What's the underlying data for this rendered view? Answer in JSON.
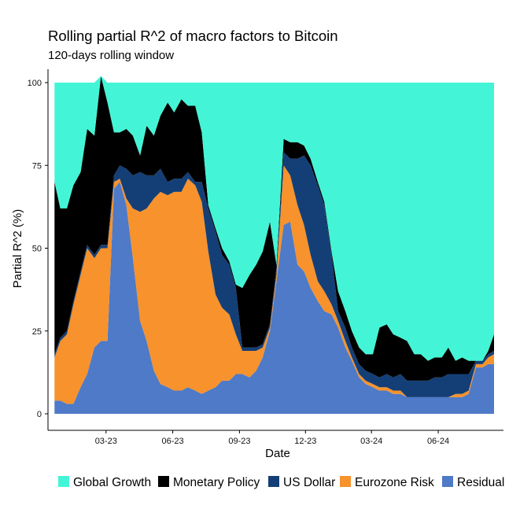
{
  "chart_data": {
    "type": "area",
    "stacked": true,
    "title": "Rolling partial R^2 of macro factors to Bitcoin",
    "subtitle": "120-days rolling window",
    "xlabel": "Date",
    "ylabel": "Partial R^2 (%)",
    "ylim": [
      0,
      100
    ],
    "yticks": [
      0,
      25,
      50,
      75,
      100
    ],
    "xlim": [
      "2022-12-11",
      "2024-08-30"
    ],
    "xticks": [
      {
        "date": "2023-03-01",
        "label": "03-23"
      },
      {
        "date": "2023-06-01",
        "label": "06-23"
      },
      {
        "date": "2023-09-01",
        "label": "09-23"
      },
      {
        "date": "2023-12-01",
        "label": "12-23"
      },
      {
        "date": "2024-03-01",
        "label": "03-24"
      },
      {
        "date": "2024-06-01",
        "label": "06-24"
      }
    ],
    "grid": false,
    "legend_position": "bottom",
    "x": [
      "2022-12-20",
      "2022-12-28",
      "2023-01-06",
      "2023-01-15",
      "2023-01-25",
      "2023-02-03",
      "2023-02-13",
      "2023-02-22",
      "2023-03-03",
      "2023-03-12",
      "2023-03-20",
      "2023-03-29",
      "2023-04-07",
      "2023-04-17",
      "2023-04-26",
      "2023-05-06",
      "2023-05-15",
      "2023-05-25",
      "2023-06-03",
      "2023-06-13",
      "2023-06-22",
      "2023-07-02",
      "2023-07-11",
      "2023-07-20",
      "2023-07-30",
      "2023-08-08",
      "2023-08-18",
      "2023-08-27",
      "2023-09-05",
      "2023-09-15",
      "2023-09-24",
      "2023-10-03",
      "2023-10-13",
      "2023-10-22",
      "2023-11-01",
      "2023-11-10",
      "2023-11-20",
      "2023-11-29",
      "2023-12-08",
      "2023-12-18",
      "2023-12-27",
      "2024-01-06",
      "2024-01-15",
      "2024-01-25",
      "2024-02-03",
      "2024-02-13",
      "2024-02-22",
      "2024-03-03",
      "2024-03-12",
      "2024-03-22",
      "2024-03-31",
      "2024-04-10",
      "2024-04-19",
      "2024-04-29",
      "2024-05-08",
      "2024-05-18",
      "2024-05-27",
      "2024-06-06",
      "2024-06-15",
      "2024-06-25",
      "2024-07-04",
      "2024-07-13",
      "2024-07-23",
      "2024-08-01",
      "2024-08-09",
      "2024-08-17"
    ],
    "series": [
      {
        "name": "Residual",
        "color": "#4E7AC7",
        "values": [
          4,
          4,
          3,
          3,
          8,
          12,
          20,
          22,
          22,
          68,
          70,
          63,
          47,
          28,
          22,
          13,
          9,
          8,
          7,
          7,
          8,
          7,
          6,
          7,
          8,
          10,
          10,
          12,
          12,
          11,
          13,
          17,
          25,
          40,
          57,
          58,
          45,
          43,
          38,
          34,
          31,
          30,
          26,
          20,
          16,
          11,
          9,
          8,
          7,
          7,
          6,
          6,
          5,
          5,
          5,
          5,
          5,
          5,
          5,
          5,
          5,
          6,
          14,
          14,
          15,
          15
        ]
      },
      {
        "name": "Eurozone Risk",
        "color": "#F7922C",
        "values": [
          13,
          18,
          21,
          30,
          34,
          38,
          27,
          28,
          28,
          2,
          1,
          2,
          15,
          33,
          40,
          52,
          58,
          58,
          60,
          60,
          63,
          62,
          58,
          42,
          28,
          22,
          20,
          12,
          7,
          8,
          6,
          3,
          1,
          2,
          18,
          14,
          18,
          14,
          10,
          6,
          6,
          3,
          2,
          2,
          1,
          1,
          1,
          1,
          1,
          1,
          1,
          1,
          0,
          0,
          0,
          0,
          0,
          0,
          0,
          1,
          1,
          1,
          1,
          1,
          2,
          3
        ]
      },
      {
        "name": "US Dollar",
        "color": "#143F76",
        "values": [
          1,
          1,
          1,
          1,
          1,
          1,
          1,
          1,
          1,
          2,
          4,
          9,
          10,
          12,
          10,
          7,
          7,
          4,
          4,
          4,
          2,
          1,
          6,
          13,
          19,
          16,
          15,
          14,
          1,
          1,
          1,
          1,
          1,
          2,
          4,
          5,
          14,
          21,
          27,
          29,
          26,
          15,
          3,
          4,
          3,
          3,
          3,
          3,
          3,
          4,
          4,
          5,
          5,
          5,
          5,
          5,
          6,
          6,
          7,
          6,
          6,
          5,
          1,
          1,
          1,
          1
        ]
      },
      {
        "name": "Monetary Policy",
        "color": "#000000",
        "values": [
          52,
          39,
          37,
          35,
          30,
          35,
          36,
          51,
          43,
          13,
          10,
          12,
          12,
          5,
          15,
          12,
          16,
          24,
          20,
          24,
          20,
          23,
          15,
          1,
          1,
          2,
          1,
          1,
          18,
          22,
          25,
          28,
          31,
          1,
          4,
          5,
          5,
          3,
          2,
          1,
          1,
          1,
          6,
          5,
          5,
          5,
          5,
          6,
          15,
          15,
          13,
          11,
          12,
          8,
          8,
          6,
          6,
          6,
          8,
          4,
          5,
          4,
          0,
          0,
          1,
          5
        ]
      },
      {
        "name": "Global Growth",
        "color": "#43F5D6",
        "values": [
          30,
          38,
          38,
          31,
          27,
          14,
          16,
          0,
          6,
          15,
          15,
          14,
          16,
          22,
          13,
          16,
          10,
          6,
          9,
          5,
          7,
          7,
          15,
          37,
          44,
          50,
          54,
          61,
          62,
          58,
          55,
          51,
          42,
          55,
          17,
          18,
          18,
          19,
          23,
          30,
          36,
          51,
          63,
          69,
          75,
          80,
          82,
          82,
          74,
          73,
          76,
          77,
          78,
          82,
          82,
          84,
          83,
          83,
          80,
          84,
          83,
          84,
          84,
          84,
          81,
          76
        ]
      }
    ]
  }
}
